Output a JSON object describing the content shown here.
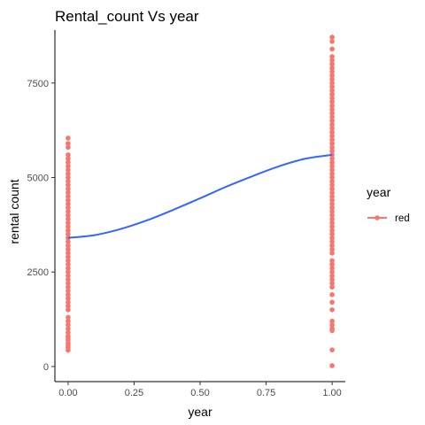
{
  "chart_data": {
    "type": "scatter",
    "title": "Rental_count Vs year",
    "xlabel": "year",
    "ylabel": "rental count",
    "xlim": [
      -0.05,
      1.05
    ],
    "ylim": [
      -400,
      8900
    ],
    "x_ticks": [
      0.0,
      0.25,
      0.5,
      0.75,
      1.0
    ],
    "x_tick_labels": [
      "0.00",
      "0.25",
      "0.50",
      "0.75",
      "1.00"
    ],
    "y_ticks": [
      0,
      2500,
      5000,
      7500
    ],
    "y_tick_labels": [
      "0",
      "2500",
      "5000",
      "7500"
    ],
    "grid": false,
    "legend": {
      "title": "year",
      "placement": "right",
      "entries": [
        {
          "label": "red",
          "color": "#F8766D"
        }
      ]
    },
    "series": [
      {
        "label": "red",
        "color": "#F8766D",
        "groups": [
          {
            "x": 0,
            "y": [
              431,
              500,
              560,
              620,
              700,
              760,
              800,
              900,
              1000,
              1100,
              1200,
              1300,
              1500,
              1600,
              1700,
              1800,
              1900,
              2000,
              2100,
              2200,
              2300,
              2400,
              2500,
              2600,
              2700,
              2800,
              2900,
              3000,
              3100,
              3200,
              3300,
              3400,
              3500,
              3600,
              3700,
              3800,
              3900,
              4000,
              4100,
              4200,
              4300,
              4400,
              4500,
              4600,
              4700,
              4800,
              4900,
              5000,
              5100,
              5200,
              5300,
              5400,
              5500,
              5600,
              5800,
              5900,
              6043
            ]
          },
          {
            "x": 1,
            "y": [
              22,
              440,
              950,
              1000,
              1100,
              1200,
              1500,
              1700,
              1900,
              2100,
              2200,
              2300,
              2400,
              2500,
              2600,
              2700,
              2800,
              3000,
              3100,
              3200,
              3300,
              3400,
              3500,
              3600,
              3700,
              3800,
              3900,
              4000,
              4100,
              4200,
              4300,
              4400,
              4500,
              4600,
              4700,
              4800,
              4900,
              5000,
              5100,
              5200,
              5300,
              5400,
              5500,
              5600,
              5700,
              5800,
              5900,
              6000,
              6100,
              6200,
              6300,
              6400,
              6500,
              6600,
              6700,
              6800,
              6900,
              7000,
              7100,
              7200,
              7300,
              7400,
              7500,
              7600,
              7700,
              7800,
              7900,
              8000,
              8100,
              8200,
              8400,
              8600,
              8714
            ]
          }
        ]
      }
    ],
    "smooth_line": {
      "color": "#3366FF",
      "x": [
        0.0,
        0.1,
        0.2,
        0.3,
        0.4,
        0.5,
        0.6,
        0.7,
        0.8,
        0.9,
        1.0
      ],
      "y": [
        3405,
        3475,
        3640,
        3870,
        4150,
        4450,
        4760,
        5040,
        5300,
        5500,
        5600
      ]
    }
  }
}
